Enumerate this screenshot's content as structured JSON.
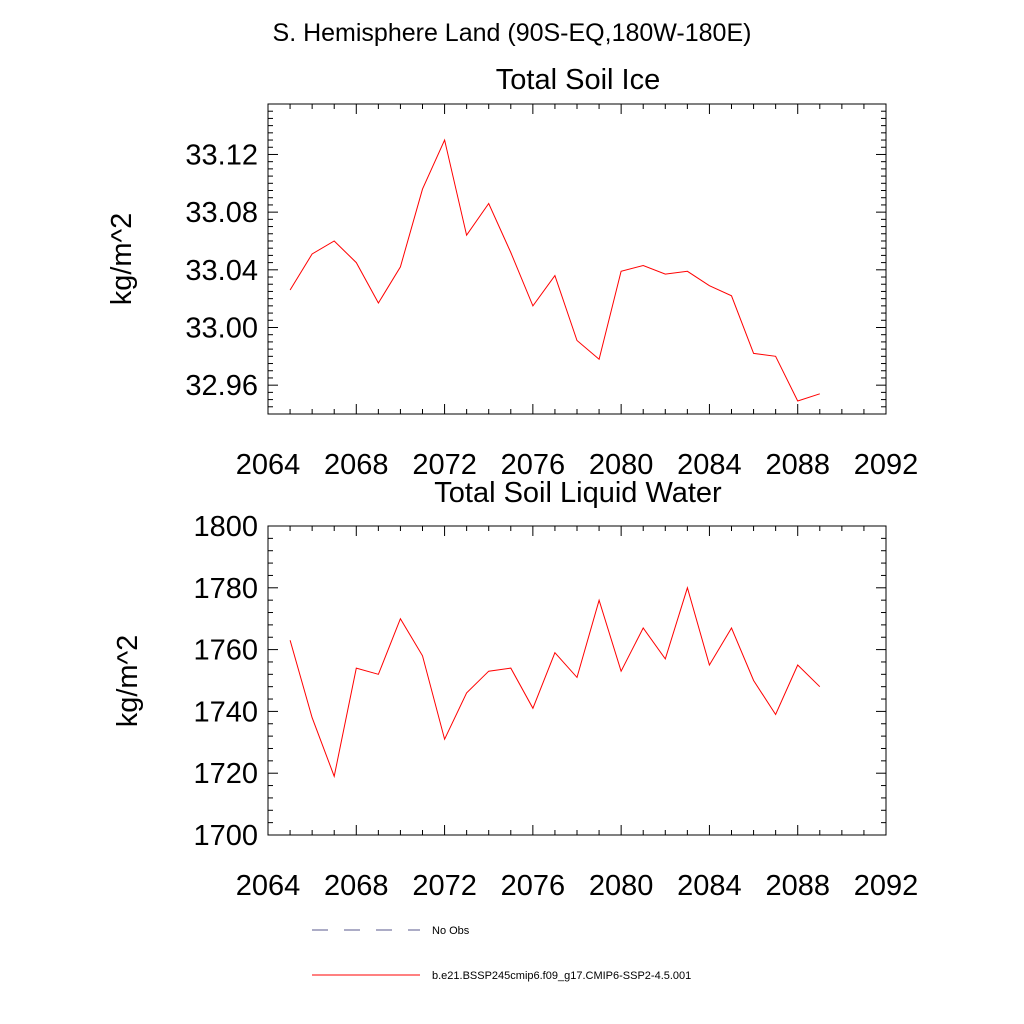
{
  "figure": {
    "region_title": "S. Hemisphere Land (90S-EQ,180W-180E)"
  },
  "chart_data": [
    {
      "type": "line",
      "title": "Total Soil Ice",
      "xlabel": "",
      "ylabel": "kg/m^2",
      "xlim": [
        2064,
        2092
      ],
      "ylim": [
        32.94,
        33.155
      ],
      "xticks": [
        2064,
        2068,
        2072,
        2076,
        2080,
        2084,
        2088,
        2092
      ],
      "xtick_labels": [
        "2064",
        "2068",
        "2072",
        "2076",
        "2080",
        "2084",
        "2088",
        "2092"
      ],
      "yticks": [
        32.96,
        33.0,
        33.04,
        33.08,
        33.12
      ],
      "ytick_labels": [
        "32.96",
        "33.00",
        "33.04",
        "33.08",
        "33.12"
      ],
      "grid": false,
      "series": [
        {
          "name": "b.e21.BSSP245cmip6.f09_g17.CMIP6-SSP2-4.5.001",
          "color": "#ff0000",
          "x": [
            2065,
            2066,
            2067,
            2068,
            2069,
            2070,
            2071,
            2072,
            2073,
            2074,
            2075,
            2076,
            2077,
            2078,
            2079,
            2080,
            2081,
            2082,
            2083,
            2084,
            2085,
            2086,
            2087,
            2088,
            2089
          ],
          "y": [
            33.026,
            33.051,
            33.06,
            33.045,
            33.017,
            33.042,
            33.096,
            33.13,
            33.064,
            33.086,
            33.052,
            33.015,
            33.036,
            32.991,
            32.978,
            33.039,
            33.043,
            33.037,
            33.039,
            33.029,
            33.022,
            32.982,
            32.98,
            32.949,
            32.954
          ]
        }
      ]
    },
    {
      "type": "line",
      "title": "Total Soil Liquid Water",
      "xlabel": "",
      "ylabel": "kg/m^2",
      "xlim": [
        2064,
        2092
      ],
      "ylim": [
        1700,
        1800
      ],
      "xticks": [
        2064,
        2068,
        2072,
        2076,
        2080,
        2084,
        2088,
        2092
      ],
      "xtick_labels": [
        "2064",
        "2068",
        "2072",
        "2076",
        "2080",
        "2084",
        "2088",
        "2092"
      ],
      "yticks": [
        1700,
        1720,
        1740,
        1760,
        1780,
        1800
      ],
      "ytick_labels": [
        "1700",
        "1720",
        "1740",
        "1760",
        "1780",
        "1800"
      ],
      "grid": false,
      "series": [
        {
          "name": "b.e21.BSSP245cmip6.f09_g17.CMIP6-SSP2-4.5.001",
          "color": "#ff0000",
          "x": [
            2065,
            2066,
            2067,
            2068,
            2069,
            2070,
            2071,
            2072,
            2073,
            2074,
            2075,
            2076,
            2077,
            2078,
            2079,
            2080,
            2081,
            2082,
            2083,
            2084,
            2085,
            2086,
            2087,
            2088,
            2089
          ],
          "y": [
            1763,
            1738,
            1719,
            1754,
            1752,
            1770,
            1758,
            1731,
            1746,
            1753,
            1754,
            1741,
            1759,
            1751,
            1776,
            1753,
            1767,
            1757,
            1780,
            1755,
            1767,
            1750,
            1739,
            1755,
            1748
          ]
        }
      ]
    }
  ],
  "legend": {
    "placement": "bottom",
    "entries": [
      {
        "label": "No Obs",
        "style": "dashed",
        "color": "#5a5a8c"
      },
      {
        "label": "b.e21.BSSP245cmip6.f09_g17.CMIP6-SSP2-4.5.001",
        "style": "solid",
        "color": "#ff0000"
      }
    ]
  }
}
